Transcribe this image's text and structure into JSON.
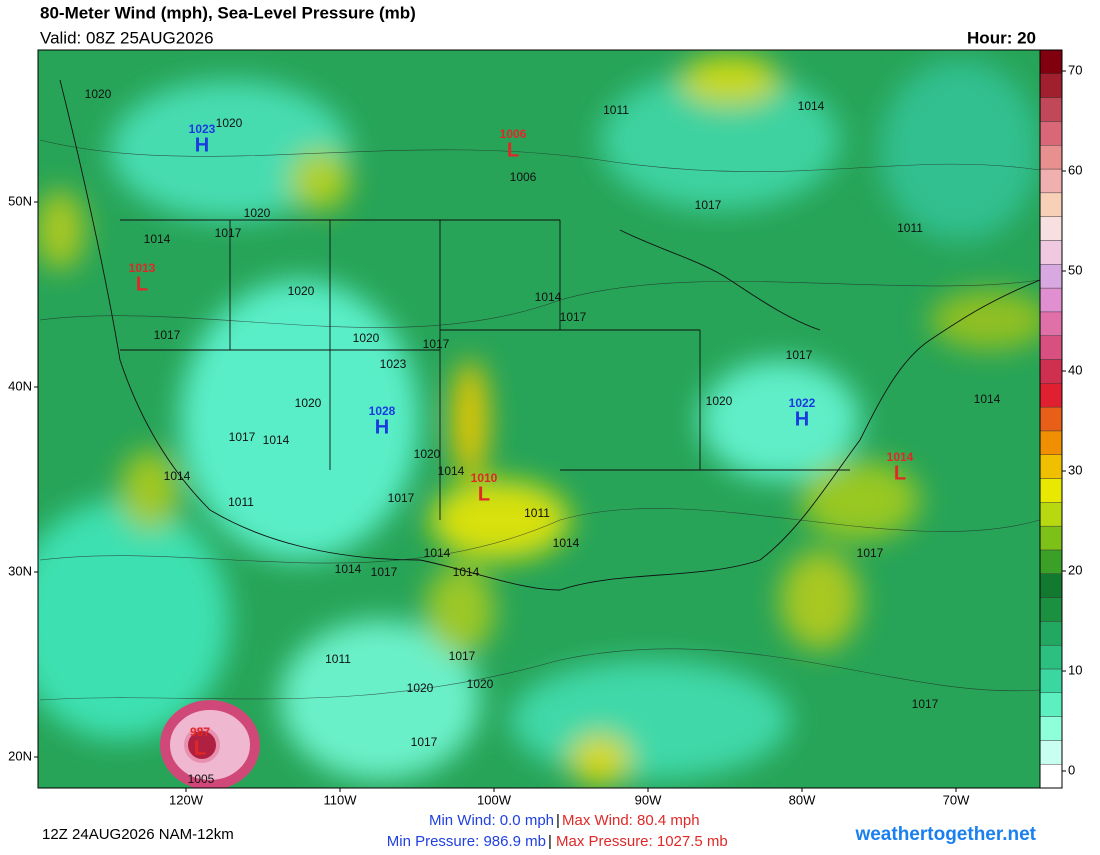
{
  "header": {
    "title": "80-Meter Wind (mph), Sea-Level Pressure (mb)",
    "valid": "Valid: 08Z 25AUG2026",
    "hour": "Hour: 20"
  },
  "colorbar": {
    "lim": [
      -1.7,
      72.1
    ],
    "ticks": [
      0,
      10,
      20,
      30,
      40,
      50,
      60,
      70
    ],
    "colors": [
      "#ffffff",
      "#c8fff0",
      "#8effd8",
      "#5cf0c0",
      "#3ad8a0",
      "#2cc080",
      "#22a860",
      "#1a9040",
      "#127a30",
      "#3aa028",
      "#7cc018",
      "#b8d810",
      "#e8e800",
      "#f0c000",
      "#f09000",
      "#e86018",
      "#e02030",
      "#d03050",
      "#d85080",
      "#e070a8",
      "#e090d0",
      "#d8a8e0",
      "#f0c8e0",
      "#f8e0e0",
      "#f8d0b8",
      "#f0b0b0",
      "#e89090",
      "#d86878",
      "#c04858",
      "#a02030",
      "#800010"
    ]
  },
  "lat_ticks": [
    {
      "value": 50,
      "label": "50N"
    },
    {
      "value": 40,
      "label": "40N"
    },
    {
      "value": 30,
      "label": "30N"
    },
    {
      "value": 20,
      "label": "20N"
    }
  ],
  "lon_ticks": [
    {
      "value": -120,
      "label": "120W"
    },
    {
      "value": -110,
      "label": "110W"
    },
    {
      "value": -100,
      "label": "100W"
    },
    {
      "value": -90,
      "label": "90W"
    },
    {
      "value": -80,
      "label": "80W"
    },
    {
      "value": -70,
      "label": "70W"
    }
  ],
  "pressure_centers": [
    {
      "symbol": "H",
      "pressure": 1023
    },
    {
      "symbol": "H",
      "pressure": 1028
    },
    {
      "symbol": "H",
      "pressure": 1022
    },
    {
      "symbol": "L",
      "pressure": 1006
    },
    {
      "symbol": "L",
      "pressure": 1013
    },
    {
      "symbol": "L",
      "pressure": 1010
    },
    {
      "symbol": "L",
      "pressure": 1014
    },
    {
      "symbol": "L",
      "pressure": 987
    }
  ],
  "isobar_labels": [
    1020,
    1020,
    1011,
    1014,
    1006,
    1017,
    1020,
    1014,
    1017,
    1011,
    1020,
    1014,
    1017,
    1017,
    1020,
    1017,
    1023,
    1017,
    1020,
    1020,
    1014,
    1017,
    1014,
    1020,
    1014,
    1014,
    1011,
    1017,
    1011,
    1014,
    1014,
    1017,
    1014,
    1017,
    1014,
    1017,
    1011,
    1020,
    1020,
    1017,
    1017,
    1005
  ],
  "footer": {
    "run": "12Z 24AUG2026 NAM-12km",
    "min_wind": "Min Wind:  0.0 mph",
    "max_wind": "Max Wind:  80.4 mph",
    "min_pressure": "Min Pressure: 986.9 mb",
    "max_pressure": "Max Pressure: 1027.5 mb",
    "separator": "|",
    "site": "weathertogether.net"
  }
}
